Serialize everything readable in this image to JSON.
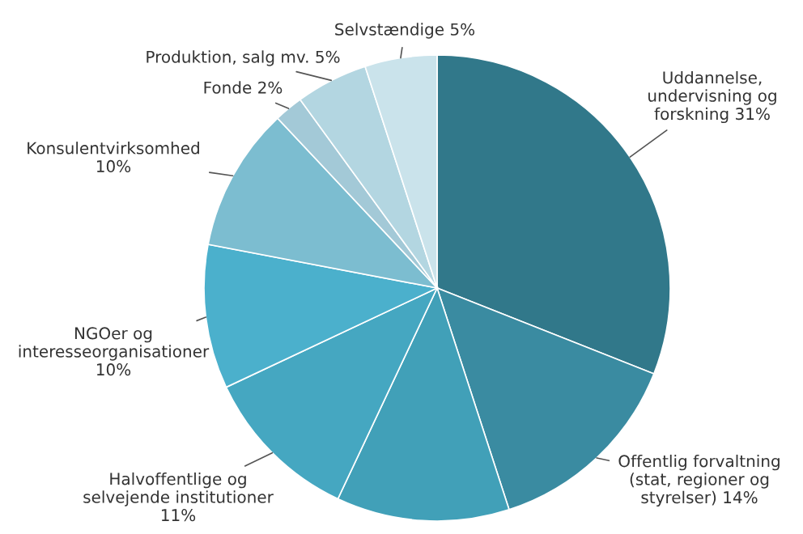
{
  "chart_data": {
    "type": "pie",
    "categories": [
      "Uddannelse, undervisning og forskning",
      "Offentlig forvaltning (stat, regioner og styrelser)",
      null,
      "Halvoffentlige og selvejende institutioner",
      "NGOer og interesseorganisationer",
      "Konsulentvirksomhed",
      "Fonde",
      "Produktion, salg mv.",
      "Selvstændige"
    ],
    "values": [
      31,
      14,
      12,
      11,
      10,
      10,
      2,
      5,
      5
    ],
    "value_labels": [
      "31%",
      "14%",
      null,
      "11%",
      "10%",
      "10%",
      "2%",
      "5%",
      "5%"
    ],
    "colors": [
      "#31788a",
      "#3a8ba1",
      "#41a0b8",
      "#45a7c1",
      "#4bb0cc",
      "#7cbdd0",
      "#a3c9d7",
      "#b3d6e1",
      "#cae3eb"
    ]
  }
}
